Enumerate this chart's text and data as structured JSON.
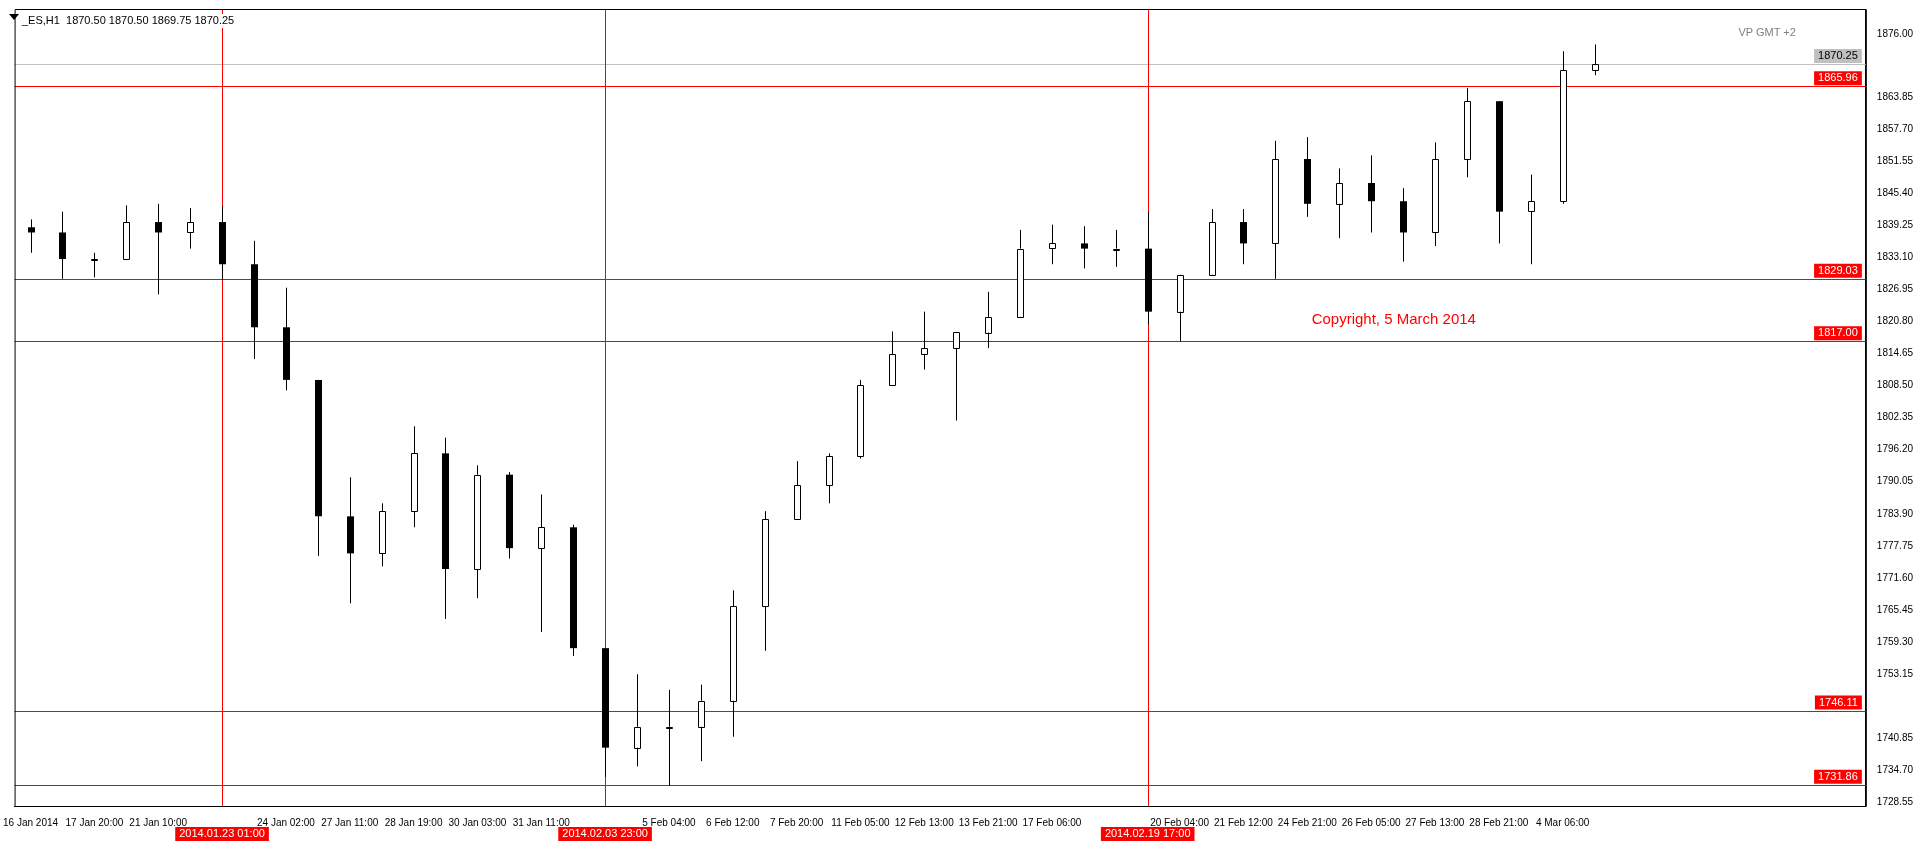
{
  "chart_data": {
    "type": "candlestick",
    "title": "_ES,H1  1870.50 1870.50 1869.75 1870.25",
    "categories": [
      "16 Jan 2014",
      null,
      "17 Jan 20:00",
      null,
      "21 Jan 10:00",
      null,
      "2014.01.23 01:00",
      null,
      "24 Jan 02:00",
      null,
      "27 Jan 11:00",
      null,
      "28 Jan 19:00",
      null,
      "30 Jan 03:00",
      null,
      "31 Jan 11:00",
      null,
      "2014.02.03 23:00",
      null,
      "5 Feb 04:00",
      null,
      "6 Feb 12:00",
      null,
      "7 Feb 20:00",
      null,
      "11 Feb 05:00",
      null,
      "12 Feb 13:00",
      null,
      "13 Feb 21:00",
      null,
      "17 Feb 06:00",
      null,
      null,
      "2014.02.19 17:00",
      "20 Feb 04:00",
      null,
      "21 Feb 12:00",
      null,
      "24 Feb 21:00",
      null,
      "26 Feb 05:00",
      null,
      "27 Feb 13:00",
      null,
      "28 Feb 21:00",
      null,
      "4 Mar 06:00",
      null,
      null,
      null,
      null,
      null,
      null,
      null,
      null,
      null
    ],
    "ohlc": [
      [
        1838.9,
        1840.4,
        1834.0,
        1837.9
      ],
      [
        1837.9,
        1841.9,
        1829.0,
        1832.8
      ],
      [
        1832.8,
        1834.0,
        1829.3,
        1832.8
      ],
      [
        1832.8,
        1843.1,
        1832.8,
        1839.9
      ],
      [
        1839.9,
        1843.4,
        1826.0,
        1837.9
      ],
      [
        1837.9,
        1842.6,
        1834.8,
        1839.9
      ],
      [
        1839.9,
        1842.9,
        1828.8,
        1831.8
      ],
      [
        1831.8,
        1836.3,
        1813.6,
        1819.7
      ],
      [
        1819.7,
        1827.3,
        1807.6,
        1809.6
      ],
      [
        1809.6,
        1809.6,
        1775.8,
        1783.4
      ],
      [
        1783.4,
        1790.9,
        1766.7,
        1776.3
      ],
      [
        1776.3,
        1785.9,
        1773.8,
        1784.4
      ],
      [
        1784.4,
        1800.7,
        1781.3,
        1795.5
      ],
      [
        1795.5,
        1798.5,
        1763.7,
        1773.3
      ],
      [
        1773.3,
        1793.2,
        1767.7,
        1791.4
      ],
      [
        1791.4,
        1791.9,
        1775.3,
        1777.3
      ],
      [
        1777.3,
        1787.6,
        1761.2,
        1781.3
      ],
      [
        1781.3,
        1781.8,
        1756.6,
        1758.1
      ],
      [
        1758.1,
        1758.1,
        1733.4,
        1739.0
      ],
      [
        1739.0,
        1753.1,
        1735.4,
        1743.0
      ],
      [
        1743.0,
        1750.1,
        1731.7,
        1743.0
      ],
      [
        1743.0,
        1751.1,
        1736.4,
        1748.0
      ],
      [
        1748.0,
        1769.2,
        1741.1,
        1766.2
      ],
      [
        1766.2,
        1784.4,
        1757.6,
        1782.9
      ],
      [
        1782.9,
        1794.0,
        1782.9,
        1789.4
      ],
      [
        1789.4,
        1795.5,
        1785.9,
        1795.0
      ],
      [
        1795.0,
        1809.6,
        1794.5,
        1808.6
      ],
      [
        1808.6,
        1818.9,
        1808.6,
        1814.6
      ],
      [
        1814.6,
        1822.7,
        1811.6,
        1815.7
      ],
      [
        1815.7,
        1818.7,
        1801.8,
        1818.7
      ],
      [
        1818.7,
        1826.5,
        1815.7,
        1821.7
      ],
      [
        1821.7,
        1838.4,
        1821.7,
        1834.8
      ],
      [
        1834.8,
        1839.4,
        1831.8,
        1835.8
      ],
      [
        1835.8,
        1839.1,
        1831.0,
        1834.8
      ],
      [
        1834.8,
        1838.4,
        1831.3,
        1834.8
      ],
      [
        1834.8,
        1841.9,
        1820.2,
        1822.7
      ],
      [
        1822.7,
        1829.8,
        1817.0,
        1829.8
      ],
      [
        1829.8,
        1842.4,
        1829.8,
        1839.9
      ],
      [
        1839.9,
        1842.4,
        1831.8,
        1835.8
      ],
      [
        1835.8,
        1855.5,
        1829.0,
        1852.0
      ],
      [
        1852.0,
        1856.2,
        1840.9,
        1843.4
      ],
      [
        1843.4,
        1850.2,
        1836.8,
        1847.4
      ],
      [
        1847.4,
        1852.7,
        1837.9,
        1843.9
      ],
      [
        1843.9,
        1846.4,
        1832.3,
        1837.9
      ],
      [
        1837.9,
        1855.2,
        1835.3,
        1852.0
      ],
      [
        1852.0,
        1865.6,
        1848.5,
        1863.1
      ],
      [
        1863.1,
        1863.1,
        1835.8,
        1841.9
      ],
      [
        1841.9,
        1849.0,
        1831.8,
        1843.9
      ],
      [
        1843.9,
        1872.7,
        1843.4,
        1869.1
      ],
      [
        1869.1,
        1874.0,
        1868.1,
        1870.25
      ],
      null,
      null,
      null,
      null,
      null,
      null,
      null,
      null
    ],
    "color": "#000000",
    "colors": [
      "#000000",
      "#000000",
      "#ffffff",
      "#ffffff",
      "#000000",
      "#ffffff",
      "#000000",
      "#000000",
      "#000000",
      "#000000",
      "#000000",
      "#ffffff",
      "#ffffff",
      "#000000",
      "#ffffff",
      "#000000",
      "#ffffff",
      "#000000",
      "#000000",
      "#ffffff",
      "#ffffff",
      "#ffffff",
      "#ffffff",
      "#ffffff",
      "#ffffff",
      "#ffffff",
      "#ffffff",
      "#ffffff",
      "#ffffff",
      "#ffffff",
      "#ffffff",
      "#ffffff",
      "#ffffff",
      "#000000",
      "#ffffff",
      "#000000",
      "#ffffff",
      "#ffffff",
      "#000000",
      "#ffffff",
      "#000000",
      "#ffffff",
      "#000000",
      "#000000",
      "#ffffff",
      "#ffffff",
      "#000000",
      "#ffffff",
      "#ffffff",
      "#ffffff",
      null,
      null,
      null,
      null,
      null,
      null,
      null,
      null
    ],
    "ylim": [
      1727.8,
      1880.8
    ],
    "yticks": [
      {
        "value": 1728.55,
        "label": "1728.55"
      },
      {
        "value": 1734.7,
        "label": "1734.70"
      },
      {
        "value": 1740.85,
        "label": "1740.85"
      },
      {
        "value": 1753.15,
        "label": "1753.15"
      },
      {
        "value": 1759.3,
        "label": "1759.30"
      },
      {
        "value": 1765.45,
        "label": "1765.45"
      },
      {
        "value": 1771.6,
        "label": "1771.60"
      },
      {
        "value": 1777.75,
        "label": "1777.75"
      },
      {
        "value": 1783.9,
        "label": "1783.90"
      },
      {
        "value": 1790.05,
        "label": "1790.05"
      },
      {
        "value": 1796.2,
        "label": "1796.20"
      },
      {
        "value": 1802.35,
        "label": "1802.35"
      },
      {
        "value": 1808.5,
        "label": "1808.50"
      },
      {
        "value": 1814.65,
        "label": "1814.65"
      },
      {
        "value": 1820.8,
        "label": "1820.80"
      },
      {
        "value": 1826.95,
        "label": "1826.95"
      },
      {
        "value": 1833.1,
        "label": "1833.10"
      },
      {
        "value": 1839.25,
        "label": "1839.25"
      },
      {
        "value": 1845.4,
        "label": "1845.40"
      },
      {
        "value": 1851.55,
        "label": "1851.55"
      },
      {
        "value": 1857.7,
        "label": "1857.70"
      },
      {
        "value": 1863.85,
        "label": "1863.85"
      },
      {
        "value": 1876.0,
        "label": "1876.00"
      }
    ],
    "grid": false,
    "legend": false,
    "ref_lines": [
      {
        "axis": "y",
        "value": 1870.25,
        "label": "1870.25",
        "color": "#c0c0c0"
      },
      {
        "axis": "y",
        "value": 1865.96,
        "label": "1865.96",
        "color": "#ff0000"
      },
      {
        "axis": "y",
        "value": 1829.03,
        "label": "1829.03",
        "color": "#ff0000"
      },
      {
        "axis": "y",
        "value": 1817.0,
        "label": "1817.00",
        "color": "#ff0000"
      },
      {
        "axis": "y",
        "value": 1746.11,
        "label": "1746.11",
        "color": "#ff0000"
      },
      {
        "axis": "y",
        "value": 1731.86,
        "label": "1731.86",
        "color": "#ff0000"
      },
      {
        "axis": "x",
        "value": "2014.01.23 01:00",
        "color": "#ff0000"
      },
      {
        "axis": "x",
        "value": "2014.02.03 23:00",
        "color": "#ff0000"
      },
      {
        "axis": "x",
        "value": "2014.02.19 17:00",
        "color": "#ff0000"
      }
    ],
    "annotations": [
      "Copyright, 5 March 2014",
      "VP GMT +2"
    ]
  }
}
